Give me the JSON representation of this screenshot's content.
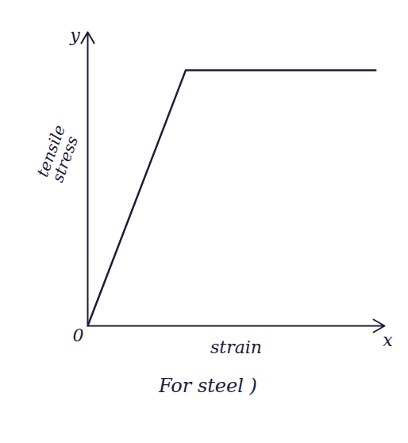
{
  "chart_data": {
    "type": "line",
    "x_label": "strain",
    "y_label": "tensile stress",
    "caption": "For steel )",
    "x": [
      0,
      0.33,
      0.97
    ],
    "values": [
      0,
      0.87,
      0.87
    ],
    "color": "#1c1c3a",
    "xlim": [
      0,
      1
    ],
    "ylim": [
      0,
      1
    ],
    "xticks": [],
    "yticks": [],
    "tick_labels": false,
    "grid": false,
    "annotations": [
      {
        "text": "0",
        "x": 0,
        "y": 0
      },
      {
        "text": "x",
        "x": 1,
        "y": 0
      },
      {
        "text": "y",
        "x": 0,
        "y": 1
      }
    ]
  }
}
